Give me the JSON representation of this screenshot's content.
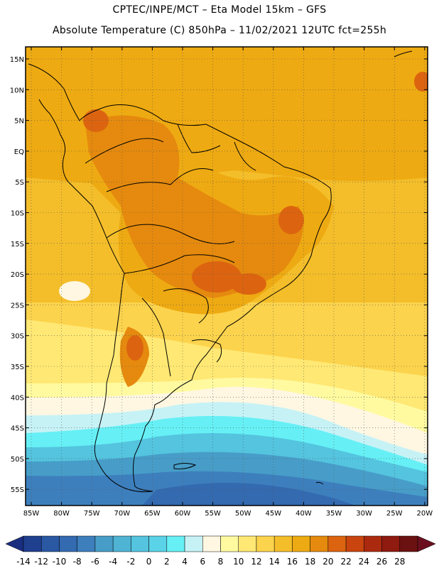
{
  "header": {
    "line1": "CPTEC/INPE/MCT –  Eta Model 15km – GFS",
    "line2": "Absolute Temperature (C) 850hPa – 11/02/2021 12UTC fct=255h"
  },
  "map": {
    "lat_labels": [
      "15N",
      "10N",
      "5N",
      "EQ",
      "5S",
      "10S",
      "15S",
      "20S",
      "25S",
      "30S",
      "35S",
      "40S",
      "45S",
      "50S",
      "55S"
    ],
    "lon_labels": [
      "85W",
      "80W",
      "75W",
      "70W",
      "65W",
      "60W",
      "55W",
      "50W",
      "45W",
      "40W",
      "35W",
      "30W",
      "25W",
      "20W"
    ]
  },
  "colorbar": {
    "labels": [
      "-14",
      "-12",
      "-10",
      "-8",
      "-6",
      "-4",
      "-2",
      "0",
      "2",
      "4",
      "6",
      "8",
      "10",
      "12",
      "14",
      "16",
      "18",
      "20",
      "22",
      "24",
      "26",
      "28"
    ],
    "colors": [
      "#1f3f8f",
      "#2a58a3",
      "#336ab0",
      "#3d7fbd",
      "#479dc8",
      "#4fb3d4",
      "#54c4df",
      "#5ad3e8",
      "#66f0f5",
      "#c6f2f6",
      "#fff7e2",
      "#fffaa0",
      "#ffe873",
      "#fcd34c",
      "#f4be2a",
      "#eeaa12",
      "#e58a0e",
      "#dc6410",
      "#c9440f",
      "#ab2a0f",
      "#8e1a10",
      "#6b1111"
    ],
    "low_arrow_color": "#1a2e80",
    "high_arrow_color": "#6b0f1e"
  }
}
